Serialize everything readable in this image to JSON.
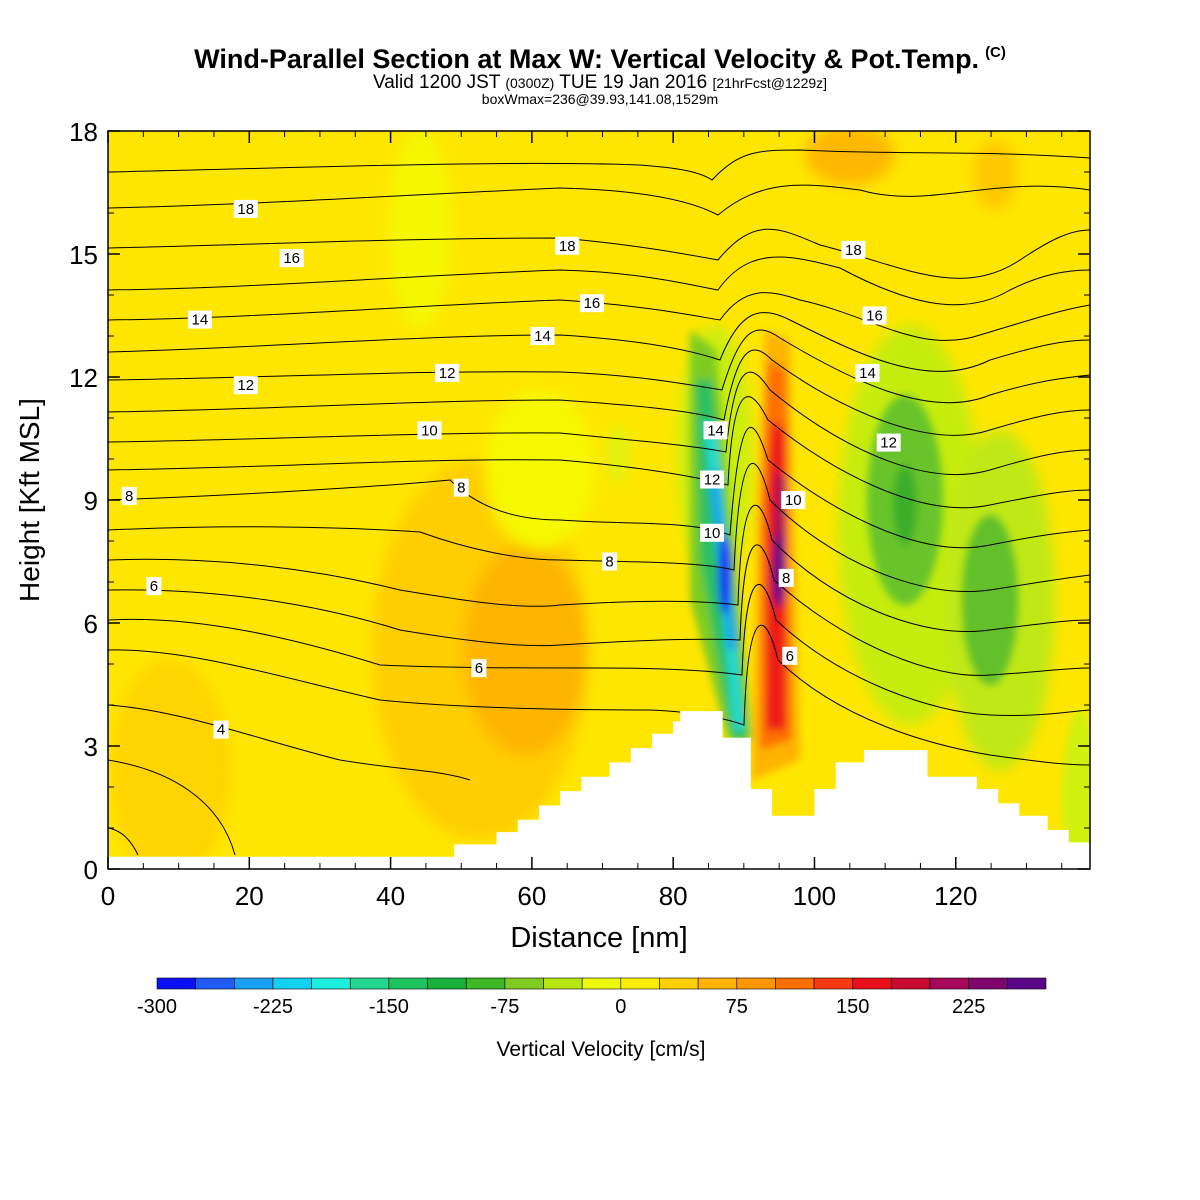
{
  "titles": {
    "main": "Wind-Parallel Section at Max W: Vertical Velocity & Pot.Temp.",
    "mark": "(C)",
    "valid_a": "Valid 1200 JST",
    "valid_utc": "(0300Z)",
    "valid_b": "TUE 19 Jan 2016",
    "forecast": "[21hrFcst@1229z]",
    "box": "boxWmax=236@39.93,141.08,1529m"
  },
  "chart_data": {
    "type": "heatmap",
    "title": "Wind-Parallel Section at Max W: Vertical Velocity & Pot.Temp.",
    "xlabel": "Distance [nm]",
    "ylabel": "Height [Kft MSL]",
    "xlim": [
      0,
      139
    ],
    "ylim": [
      0,
      18
    ],
    "x_ticks": [
      0,
      20,
      40,
      60,
      80,
      100,
      120
    ],
    "y_ticks": [
      0,
      3,
      6,
      9,
      12,
      15,
      18
    ],
    "colorbar": {
      "label": "Vertical Velocity [cm/s]",
      "bounds": [
        -300,
        -275,
        -250,
        -225,
        -200,
        -175,
        -150,
        -125,
        -100,
        -75,
        -50,
        -25,
        0,
        25,
        50,
        75,
        100,
        125,
        150,
        175,
        200,
        225,
        250
      ],
      "tick_values": [
        -300,
        -225,
        -150,
        -75,
        0,
        75,
        150,
        225
      ],
      "colors": [
        "#0a12f5",
        "#1f5cf7",
        "#1aa0f2",
        "#12d2f0",
        "#1ceee0",
        "#22d890",
        "#1ec55e",
        "#18b23a",
        "#3fb726",
        "#80cc22",
        "#b8e612",
        "#ecf80a",
        "#ffee00",
        "#ffd000",
        "#ffb400",
        "#ff9600",
        "#ff6e00",
        "#fa3a12",
        "#e80f1a",
        "#c80a30",
        "#a8085a",
        "#7f066f",
        "#5a0888"
      ]
    },
    "vertical_velocity_cells": [
      {
        "x": 87,
        "y": 7,
        "value": -290
      },
      {
        "x": 86,
        "y": 9,
        "value": -180
      },
      {
        "x": 84,
        "y": 11,
        "value": -60
      },
      {
        "x": 95,
        "y": 7,
        "value": 236
      },
      {
        "x": 94,
        "y": 4.5,
        "value": 160
      },
      {
        "x": 97,
        "y": 11,
        "value": 100
      },
      {
        "x": 113,
        "y": 9,
        "value": -100
      },
      {
        "x": 124,
        "y": 7,
        "value": -90
      },
      {
        "x": 60,
        "y": 5.5,
        "value": 60
      }
    ],
    "contour_labels": [
      {
        "text": "18",
        "x": 19.5,
        "y": 16.1
      },
      {
        "text": "16",
        "x": 26,
        "y": 14.9
      },
      {
        "text": "14",
        "x": 13,
        "y": 13.4
      },
      {
        "text": "12",
        "x": 19.5,
        "y": 11.8
      },
      {
        "text": "8",
        "x": 3,
        "y": 9.1
      },
      {
        "text": "6",
        "x": 6.5,
        "y": 6.9
      },
      {
        "text": "4",
        "x": 16,
        "y": 3.4
      },
      {
        "text": "18",
        "x": 65,
        "y": 15.2
      },
      {
        "text": "16",
        "x": 68.5,
        "y": 13.8
      },
      {
        "text": "14",
        "x": 61.5,
        "y": 13.0
      },
      {
        "text": "12",
        "x": 48,
        "y": 12.1
      },
      {
        "text": "10",
        "x": 45.5,
        "y": 10.7
      },
      {
        "text": "8",
        "x": 50,
        "y": 9.3
      },
      {
        "text": "8",
        "x": 71,
        "y": 7.5
      },
      {
        "text": "6",
        "x": 52.5,
        "y": 4.9
      },
      {
        "text": "14",
        "x": 86,
        "y": 10.7
      },
      {
        "text": "12",
        "x": 85.5,
        "y": 9.5
      },
      {
        "text": "10",
        "x": 85.5,
        "y": 8.2
      },
      {
        "text": "10",
        "x": 97,
        "y": 9.0
      },
      {
        "text": "8",
        "x": 96,
        "y": 7.1
      },
      {
        "text": "6",
        "x": 96.5,
        "y": 5.2
      },
      {
        "text": "18",
        "x": 105.5,
        "y": 15.1
      },
      {
        "text": "16",
        "x": 108.5,
        "y": 13.5
      },
      {
        "text": "14",
        "x": 107.5,
        "y": 12.1
      },
      {
        "text": "12",
        "x": 110.5,
        "y": 10.4
      }
    ],
    "terrain": [
      [
        0,
        0.3
      ],
      [
        1,
        0.3
      ],
      [
        2,
        0.3
      ],
      [
        3,
        0.3
      ],
      [
        4,
        0.3
      ],
      [
        5,
        0.3
      ],
      [
        6,
        0.3
      ],
      [
        7,
        0.3
      ],
      [
        8,
        0.3
      ],
      [
        9,
        0.3
      ],
      [
        10,
        0.3
      ],
      [
        11,
        0.3
      ],
      [
        12,
        0.3
      ],
      [
        13,
        0.3
      ],
      [
        14,
        0.3
      ],
      [
        15,
        0.3
      ],
      [
        16,
        0.3
      ],
      [
        17,
        0.3
      ],
      [
        18,
        0.3
      ],
      [
        19,
        0.3
      ],
      [
        20,
        0.3
      ],
      [
        21,
        0.3
      ],
      [
        22,
        0.3
      ],
      [
        23,
        0.3
      ],
      [
        24,
        0.3
      ],
      [
        25,
        0.3
      ],
      [
        26,
        0.3
      ],
      [
        27,
        0.3
      ],
      [
        28,
        0.3
      ],
      [
        29,
        0.3
      ],
      [
        30,
        0.3
      ],
      [
        31,
        0.3
      ],
      [
        32,
        0.3
      ],
      [
        33,
        0.3
      ],
      [
        34,
        0.3
      ],
      [
        35,
        0.3
      ],
      [
        36,
        0.3
      ],
      [
        37,
        0.3
      ],
      [
        38,
        0.3
      ],
      [
        39,
        0.3
      ],
      [
        40,
        0.3
      ],
      [
        41,
        0.3
      ],
      [
        42,
        0.3
      ],
      [
        43,
        0.3
      ],
      [
        44,
        0.3
      ],
      [
        45,
        0.3
      ],
      [
        46,
        0.3
      ],
      [
        47,
        0.3
      ],
      [
        48,
        0.3
      ],
      [
        49,
        0.6
      ],
      [
        52,
        0.6
      ],
      [
        55,
        0.9
      ],
      [
        58,
        1.2
      ],
      [
        61,
        1.55
      ],
      [
        64,
        1.9
      ],
      [
        67,
        2.25
      ],
      [
        71,
        2.6
      ],
      [
        74,
        2.95
      ],
      [
        77,
        3.3
      ],
      [
        80,
        3.6
      ],
      [
        81,
        3.85
      ],
      [
        84,
        3.85
      ],
      [
        87,
        3.2
      ],
      [
        90,
        3.2
      ],
      [
        91,
        1.95
      ],
      [
        94,
        1.3
      ],
      [
        100,
        1.95
      ],
      [
        103,
        2.6
      ],
      [
        107,
        2.9
      ],
      [
        110,
        2.9
      ],
      [
        116,
        2.25
      ],
      [
        120,
        2.25
      ],
      [
        123,
        1.95
      ],
      [
        126,
        1.6
      ],
      [
        129,
        1.3
      ],
      [
        133,
        0.95
      ],
      [
        136,
        0.65
      ],
      [
        139,
        0.65
      ]
    ]
  }
}
